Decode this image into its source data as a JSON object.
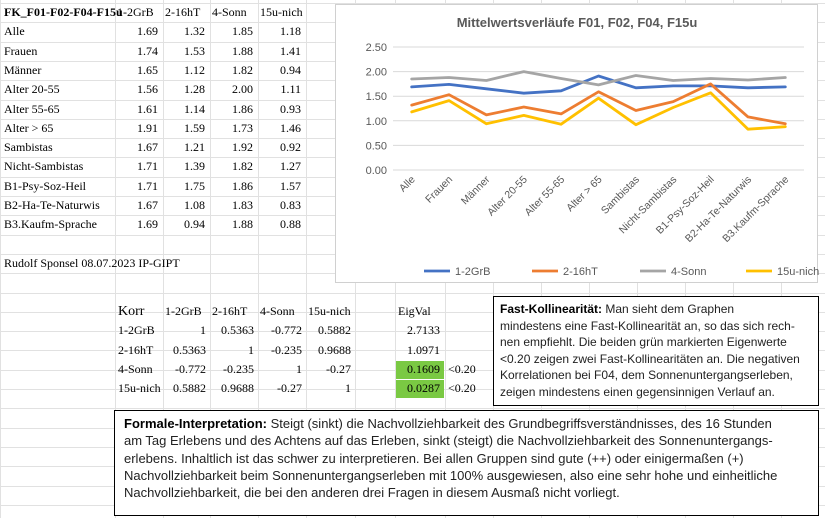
{
  "table1": {
    "title": "FK_F01-F02-F04-F15u",
    "headers": [
      "1-2GrB",
      "2-16hT",
      "4-Sonn",
      "15u-nich"
    ],
    "rows": [
      {
        "label": "Alle",
        "values": [
          "1.69",
          "1.32",
          "1.85",
          "1.18"
        ]
      },
      {
        "label": "Frauen",
        "values": [
          "1.74",
          "1.53",
          "1.88",
          "1.41"
        ]
      },
      {
        "label": "Männer",
        "values": [
          "1.65",
          "1.12",
          "1.82",
          "0.94"
        ]
      },
      {
        "label": "Alter 20-55",
        "values": [
          "1.56",
          "1.28",
          "2.00",
          "1.11"
        ]
      },
      {
        "label": "Alter 55-65",
        "values": [
          "1.61",
          "1.14",
          "1.86",
          "0.93"
        ]
      },
      {
        "label": "Alter > 65",
        "values": [
          "1.91",
          "1.59",
          "1.73",
          "1.46"
        ]
      },
      {
        "label": "Sambistas",
        "values": [
          "1.67",
          "1.21",
          "1.92",
          "0.92"
        ]
      },
      {
        "label": "Nicht-Sambistas",
        "values": [
          "1.71",
          "1.39",
          "1.82",
          "1.27"
        ]
      },
      {
        "label": "B1-Psy-Soz-Heil",
        "values": [
          "1.71",
          "1.75",
          "1.86",
          "1.57"
        ]
      },
      {
        "label": "B2-Ha-Te-Naturwis",
        "values": [
          "1.67",
          "1.08",
          "1.83",
          "0.83"
        ]
      },
      {
        "label": "B3.Kaufm-Sprache",
        "values": [
          "1.69",
          "0.94",
          "1.88",
          "0.88"
        ]
      }
    ]
  },
  "author_line": "Rudolf Sponsel 08.07.2023 IP-GIPT",
  "corr": {
    "corner": "Korr",
    "headers": [
      "1-2GrB",
      "2-16hT",
      "4-Sonn",
      "15u-nich"
    ],
    "eig_header": "EigVal",
    "rows": [
      {
        "label": "1-2GrB",
        "values": [
          "1",
          "0.5363",
          "-0.772",
          "0.5882"
        ],
        "eig": "2.7133",
        "note": ""
      },
      {
        "label": "2-16hT",
        "values": [
          "0.5363",
          "1",
          "-0.235",
          "0.9688"
        ],
        "eig": "1.0971",
        "note": ""
      },
      {
        "label": "4-Sonn",
        "values": [
          "-0.772",
          "-0.235",
          "1",
          "-0.27"
        ],
        "eig": "0.1609",
        "note": "<0.20"
      },
      {
        "label": "15u-nich",
        "values": [
          "0.5882",
          "0.9688",
          "-0.27",
          "1"
        ],
        "eig": "0.0287",
        "note": "<0.20"
      }
    ],
    "highlight_color": "#7ac943"
  },
  "chart_data": {
    "type": "line",
    "title": "Mittelwertsverläufe F01, F02, F04, F15u",
    "categories": [
      "Alle",
      "Frauen",
      "Männer",
      "Alter 20-55",
      "Alter 55-65",
      "Alter > 65",
      "Sambistas",
      "Nicht-Sambistas",
      "B1-Psy-Soz-Heil",
      "B2-Ha-Te-Naturwis",
      "B3.Kaufm-Sprache"
    ],
    "ylim": [
      0,
      2.5
    ],
    "yticks": [
      "0.00",
      "0.50",
      "1.00",
      "1.50",
      "2.00",
      "2.50"
    ],
    "grid": true,
    "legend": "bottom",
    "series": [
      {
        "name": "1-2GrB",
        "color": "#4472c4",
        "values": [
          1.69,
          1.74,
          1.65,
          1.56,
          1.61,
          1.91,
          1.67,
          1.71,
          1.71,
          1.67,
          1.69
        ]
      },
      {
        "name": "2-16hT",
        "color": "#ed7d31",
        "values": [
          1.32,
          1.53,
          1.12,
          1.28,
          1.14,
          1.59,
          1.21,
          1.39,
          1.75,
          1.08,
          0.94
        ]
      },
      {
        "name": "4-Sonn",
        "color": "#a5a5a5",
        "values": [
          1.85,
          1.88,
          1.82,
          2.0,
          1.86,
          1.73,
          1.92,
          1.82,
          1.86,
          1.83,
          1.88
        ]
      },
      {
        "name": "15u-nich",
        "color": "#ffc000",
        "values": [
          1.18,
          1.41,
          0.94,
          1.11,
          0.93,
          1.46,
          0.92,
          1.27,
          1.57,
          0.83,
          0.88
        ]
      }
    ]
  },
  "fast_box": {
    "title": "Fast-Kollinearität:",
    "lines": [
      " Man sieht dem Graphen",
      "mindestens eine Fast-Kollinearität an, so das sich rech-",
      "nen empfiehlt. Die beiden grün markierten Eigenwerte",
      "<0.20 zeigen zwei Fast-Kollinearitäten an. Die negativen",
      "Korrelationen bei F04, dem Sonnenuntergangserleben,",
      "zeigen mindestens einen gegensinnigen Verlauf an."
    ]
  },
  "interp_box": {
    "title": "Formale-Interpretation:",
    "lines": [
      "  Steigt (sinkt) die Nachvollziehbarkeit des Grundbegriffsverständnisses, des 16 Stunden",
      "am Tag Erlebens und des Achtens auf das Erleben, sinkt (steigt) die Nachvollziehbarkeit des Sonnenuntergangs-",
      "erlebens. Inhaltlich ist das schwer zu interpretieren. Bei allen Gruppen sind gute (++) oder einigermaßen (+)",
      "Nachvollziehbarkeit beim Sonnenuntergangserleben mit 100% ausgewiesen, also eine sehr hohe und einheitliche",
      "Nachvollziehbarkeit, die bei den anderen drei Fragen in diesem Ausmaß nicht vorliegt."
    ]
  }
}
